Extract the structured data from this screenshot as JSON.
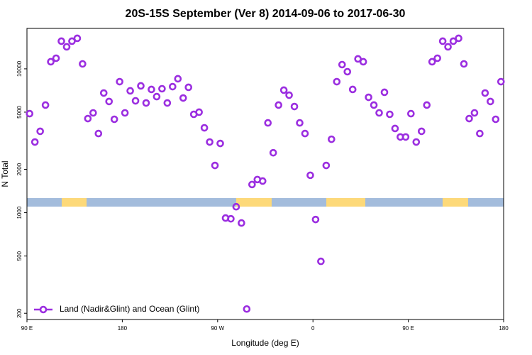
{
  "chart_data": {
    "type": "scatter",
    "title": "20S-15S September (Ver 8)   2014-09-06 to 2017-06-30",
    "xlabel": "Longitude (deg E)",
    "ylabel": "N Total",
    "log_y": true,
    "legend": "bottom-left",
    "xlim": [
      90,
      540
    ],
    "xticks": [
      {
        "value": 90,
        "label": "90 E"
      },
      180,
      {
        "value": 270,
        "label": "90 W"
      },
      {
        "value": 360,
        "label": "0"
      },
      {
        "value": 450,
        "label": "90 E"
      },
      {
        "value": 540,
        "label": "180"
      }
    ],
    "ylim": [
      181,
      19100
    ],
    "yticks": [
      200,
      500,
      1000,
      2000,
      5000,
      10000
    ],
    "surface_band": {
      "value": 1180,
      "ocean_color": "#a3bcdc",
      "land_color": "#fdd979",
      "land_ranges": [
        [
          122.8,
          146.3
        ],
        [
          287.5,
          321
        ],
        [
          372.6,
          409.4
        ],
        [
          482.4,
          506.5
        ]
      ]
    },
    "series": [
      {
        "name": "Land (Nadir&Glint) and Ocean (Glint)",
        "color": "#9b2ee0",
        "x": [
          92.5,
          97.5,
          102.5,
          107.5,
          112.5,
          117.5,
          122.5,
          127.5,
          132.5,
          137.5,
          142.5,
          147.5,
          152.5,
          157.5,
          162.5,
          167.5,
          172.5,
          177.5,
          182.5,
          187.5,
          192.5,
          197.5,
          202.5,
          207.5,
          212.5,
          217.5,
          222.5,
          227.5,
          232.5,
          237.5,
          242.5,
          247.5,
          252.5,
          257.5,
          262.5,
          267.5,
          272.5,
          277.5,
          282.5,
          287.5,
          292.5,
          297.5,
          302.5,
          307.5,
          312.5,
          317.5,
          322.5,
          327.5,
          332.5,
          337.5,
          342.5,
          347.5,
          352.5,
          357.5,
          362.5,
          367.5,
          372.5,
          377.5,
          382.5,
          387.5,
          392.5,
          397.5,
          402.5,
          407.5,
          412.5,
          417.5,
          422.5,
          427.5,
          432.5,
          437.5,
          442.5,
          447.5,
          452.5,
          457.5,
          462.5,
          467.5,
          472.5,
          477.5,
          482.5,
          487.5,
          492.5,
          497.5,
          502.5,
          507.5,
          512.5,
          517.5,
          522.5,
          527.5,
          532.5,
          537.5
        ],
        "values": [
          4880,
          3100,
          3680,
          5600,
          11200,
          11850,
          15570,
          14220,
          15570,
          16300,
          10820,
          4510,
          4940,
          3550,
          6790,
          5930,
          4460,
          8140,
          4940,
          7030,
          5990,
          7610,
          5790,
          7190,
          6410,
          7270,
          5790,
          7520,
          8530,
          6270,
          7440,
          4830,
          5000,
          3890,
          3100,
          2130,
          3030,
          918,
          907,
          1100,
          848,
          214,
          1570,
          1700,
          1660,
          4210,
          2610,
          5600,
          7110,
          6560,
          5470,
          4210,
          3550,
          1820,
          897,
          459,
          2130,
          3240,
          8140,
          10700,
          9550,
          7190,
          11720,
          11200,
          6340,
          5600,
          4940,
          6870,
          4830,
          3850,
          3360,
          3360,
          4880,
          3100,
          3680,
          5600,
          11200,
          11850,
          15570,
          14220,
          15570,
          16300,
          10820,
          4510,
          4940,
          3550,
          6790,
          5930,
          4460,
          8140
        ]
      }
    ]
  }
}
